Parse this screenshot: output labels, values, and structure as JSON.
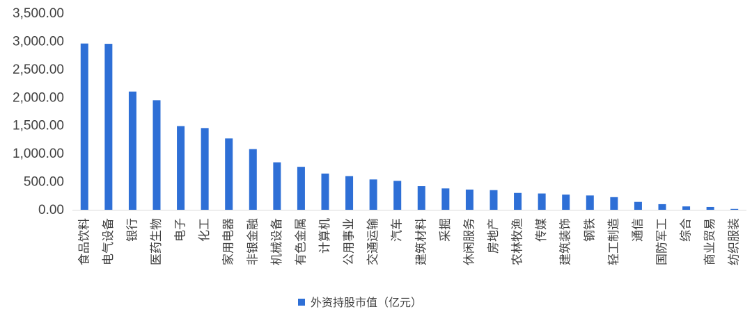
{
  "chart_data": {
    "type": "bar",
    "categories": [
      "食品饮料",
      "电气设备",
      "银行",
      "医药生物",
      "电子",
      "化工",
      "家用电器",
      "非银金融",
      "机械设备",
      "有色金属",
      "计算机",
      "公用事业",
      "交通运输",
      "汽车",
      "建筑材料",
      "采掘",
      "休闲服务",
      "房地产",
      "农林牧渔",
      "传媒",
      "建筑装饰",
      "钢铁",
      "轻工制造",
      "通信",
      "国防军工",
      "综合",
      "商业贸易",
      "纺织服装"
    ],
    "series": [
      {
        "name": "外资持股市值（亿元）",
        "values": [
          2960,
          2955,
          2105,
          1950,
          1490,
          1455,
          1270,
          1080,
          845,
          765,
          645,
          600,
          540,
          515,
          420,
          380,
          360,
          350,
          300,
          290,
          270,
          255,
          225,
          140,
          100,
          60,
          50,
          15
        ]
      }
    ],
    "ylim": [
      0,
      3500
    ],
    "yticks": [
      "0.00",
      "500.00",
      "1,000.00",
      "1,500.00",
      "2,000.00",
      "2,500.00",
      "3,000.00",
      "3,500.00"
    ],
    "grid": false,
    "legend_position": "bottom",
    "colors": {
      "bar": "#2e6fd6",
      "axis": "#d9d9d9"
    }
  }
}
